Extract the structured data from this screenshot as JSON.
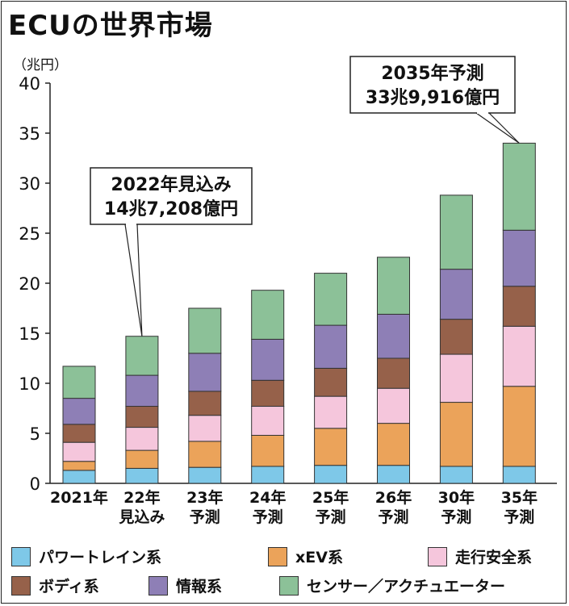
{
  "title": "ECUの世界市場",
  "colors": {
    "パワートレイン系": "#7ec8e8",
    "xEV系": "#eba35a",
    "走行安全系": "#f5c6dc",
    "ボディ系": "#96614a",
    "情報系": "#8e7fb6",
    "センサー／アクチュエーター": "#8cc198"
  },
  "chart_data": {
    "type": "bar",
    "stacked": true,
    "unit_label": "（兆円）",
    "ylim": [
      0,
      40
    ],
    "yticks": [
      0,
      5,
      10,
      15,
      20,
      25,
      30,
      35,
      40
    ],
    "categories": [
      [
        "2021年"
      ],
      [
        "22年",
        "見込み"
      ],
      [
        "23年",
        "予測"
      ],
      [
        "24年",
        "予測"
      ],
      [
        "25年",
        "予測"
      ],
      [
        "26年",
        "予測"
      ],
      [
        "30年",
        "予測"
      ],
      [
        "35年",
        "予測"
      ]
    ],
    "series": [
      {
        "name": "パワートレイン系",
        "values": [
          1.3,
          1.5,
          1.6,
          1.7,
          1.8,
          1.8,
          1.7,
          1.7
        ]
      },
      {
        "name": "xEV系",
        "values": [
          0.9,
          1.8,
          2.6,
          3.1,
          3.7,
          4.2,
          6.4,
          8.0
        ]
      },
      {
        "name": "走行安全系",
        "values": [
          1.9,
          2.3,
          2.6,
          2.9,
          3.2,
          3.5,
          4.8,
          6.0
        ]
      },
      {
        "name": "ボディ系",
        "values": [
          1.8,
          2.1,
          2.4,
          2.6,
          2.8,
          3.0,
          3.5,
          4.0
        ]
      },
      {
        "name": "情報系",
        "values": [
          2.6,
          3.1,
          3.8,
          4.1,
          4.3,
          4.4,
          5.0,
          5.6
        ]
      },
      {
        "name": "センサー／アクチュエーター",
        "values": [
          3.2,
          3.9,
          4.5,
          4.9,
          5.2,
          5.7,
          7.4,
          8.7
        ]
      }
    ],
    "annotations": [
      {
        "lines": [
          "2022年見込み",
          "14兆7,208億円"
        ],
        "category_index": 1
      },
      {
        "lines": [
          "2035年予測",
          "33兆9,916億円"
        ],
        "category_index": 7
      }
    ]
  },
  "legend": [
    {
      "label": "パワートレイン系"
    },
    {
      "label": "xEV系"
    },
    {
      "label": "走行安全系"
    },
    {
      "label": "ボディ系"
    },
    {
      "label": "情報系"
    },
    {
      "label": "センサー／アクチュエーター"
    }
  ]
}
